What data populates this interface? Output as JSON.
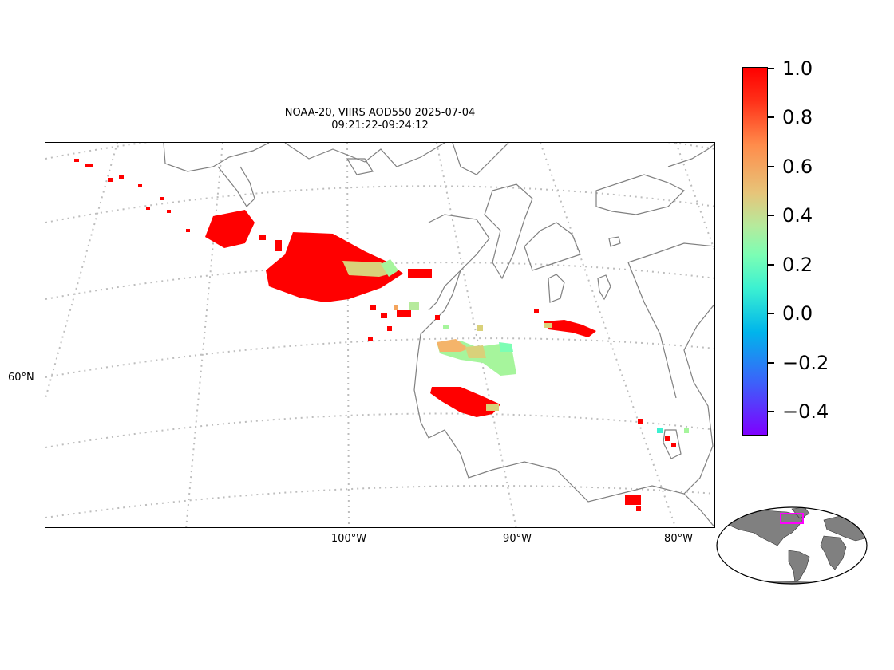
{
  "title": {
    "line1": "NOAA-20, VIIRS AOD550 2025-07-04",
    "line2": "09:21:22-09:24:12"
  },
  "map": {
    "graticule_style": "dotted grey",
    "lon_labels": [
      "100°W",
      "90°W",
      "80°W"
    ],
    "lat_labels": [
      "60°N"
    ],
    "land_outline_color": "#808080"
  },
  "colorbar": {
    "colormap": "rainbow",
    "range": [
      -0.5,
      1.0
    ],
    "ticks": [
      "1.0",
      "0.8",
      "0.6",
      "0.4",
      "0.2",
      "0.0",
      "−0.2",
      "−0.4"
    ]
  },
  "inset": {
    "type": "world-locator-globe",
    "land_color": "#808080",
    "region_box_color": "#ff00ff"
  }
}
